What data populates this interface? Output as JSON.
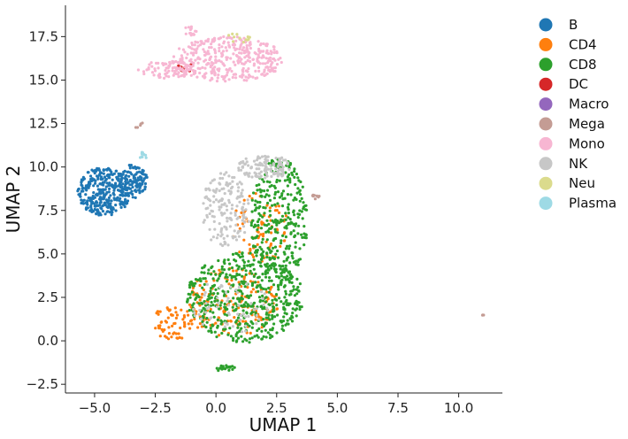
{
  "chart_data": {
    "type": "scatter",
    "title": "",
    "xlabel": "UMAP 1",
    "ylabel": "UMAP 2",
    "xlim": [
      -6.2,
      11.8
    ],
    "ylim": [
      -3.0,
      19.3
    ],
    "xticks": [
      -5.0,
      -2.5,
      0.0,
      2.5,
      5.0,
      7.5,
      10.0
    ],
    "xtick_labels": [
      "−5.0",
      "−2.5",
      "0.0",
      "2.5",
      "5.0",
      "7.5",
      "10.0"
    ],
    "yticks": [
      -2.5,
      0.0,
      2.5,
      5.0,
      7.5,
      10.0,
      12.5,
      15.0,
      17.5
    ],
    "ytick_labels": [
      "−2.5",
      "0.0",
      "2.5",
      "5.0",
      "7.5",
      "10.0",
      "12.5",
      "15.0",
      "17.5"
    ],
    "grid": false,
    "legend_position": "right",
    "series": [
      {
        "name": "B",
        "color": "#1f77b4",
        "clusters": [
          {
            "cx": -4.6,
            "cy": 8.6,
            "rx": 1.1,
            "ry": 1.4,
            "n": 320
          },
          {
            "cx": -3.4,
            "cy": 9.2,
            "rx": 0.6,
            "ry": 1.0,
            "n": 120
          }
        ]
      },
      {
        "name": "CD4",
        "color": "#ff7f0e",
        "clusters": [
          {
            "cx": 0.6,
            "cy": 2.2,
            "rx": 2.0,
            "ry": 2.0,
            "n": 180
          },
          {
            "cx": 1.8,
            "cy": 6.5,
            "rx": 1.2,
            "ry": 2.0,
            "n": 80
          },
          {
            "cx": -1.8,
            "cy": 1.0,
            "rx": 0.9,
            "ry": 1.0,
            "n": 60
          }
        ]
      },
      {
        "name": "CD8",
        "color": "#2ca02c",
        "clusters": [
          {
            "cx": 1.2,
            "cy": 2.5,
            "rx": 2.4,
            "ry": 2.6,
            "n": 520
          },
          {
            "cx": 2.6,
            "cy": 7.0,
            "rx": 1.2,
            "ry": 3.5,
            "n": 300
          },
          {
            "cx": 0.4,
            "cy": -1.6,
            "rx": 0.4,
            "ry": 0.2,
            "n": 20
          }
        ]
      },
      {
        "name": "DC",
        "color": "#d62728",
        "clusters": [
          {
            "cx": -1.2,
            "cy": 15.7,
            "rx": 0.5,
            "ry": 0.2,
            "n": 12
          }
        ]
      },
      {
        "name": "Macro",
        "color": "#9467bd",
        "clusters": []
      },
      {
        "name": "Mega",
        "color": "#c49c94",
        "clusters": [
          {
            "cx": 4.1,
            "cy": 8.3,
            "rx": 0.2,
            "ry": 0.15,
            "n": 8
          },
          {
            "cx": 11.0,
            "cy": 1.5,
            "rx": 0.03,
            "ry": 0.05,
            "n": 3
          },
          {
            "cx": -3.2,
            "cy": 12.4,
            "rx": 0.2,
            "ry": 0.3,
            "n": 5
          }
        ]
      },
      {
        "name": "Mono",
        "color": "#f7b6d2",
        "clusters": [
          {
            "cx": 0.5,
            "cy": 16.2,
            "rx": 2.3,
            "ry": 1.3,
            "n": 380
          },
          {
            "cx": -2.0,
            "cy": 15.6,
            "rx": 1.2,
            "ry": 0.5,
            "n": 80
          },
          {
            "cx": -1.1,
            "cy": 17.8,
            "rx": 0.3,
            "ry": 0.3,
            "n": 15
          }
        ]
      },
      {
        "name": "NK",
        "color": "#c7c7c7",
        "clusters": [
          {
            "cx": 0.4,
            "cy": 7.5,
            "rx": 1.0,
            "ry": 2.2,
            "n": 160
          },
          {
            "cx": 2.0,
            "cy": 10.0,
            "rx": 1.1,
            "ry": 0.7,
            "n": 120
          },
          {
            "cx": 0.6,
            "cy": 2.0,
            "rx": 1.6,
            "ry": 1.6,
            "n": 60
          }
        ]
      },
      {
        "name": "Neu",
        "color": "#dbdb8d",
        "clusters": [
          {
            "cx": 0.9,
            "cy": 17.4,
            "rx": 0.5,
            "ry": 0.3,
            "n": 12
          }
        ]
      },
      {
        "name": "Plasma",
        "color": "#9edae5",
        "clusters": [
          {
            "cx": -3.0,
            "cy": 10.6,
            "rx": 0.15,
            "ry": 0.3,
            "n": 10
          }
        ]
      }
    ]
  }
}
